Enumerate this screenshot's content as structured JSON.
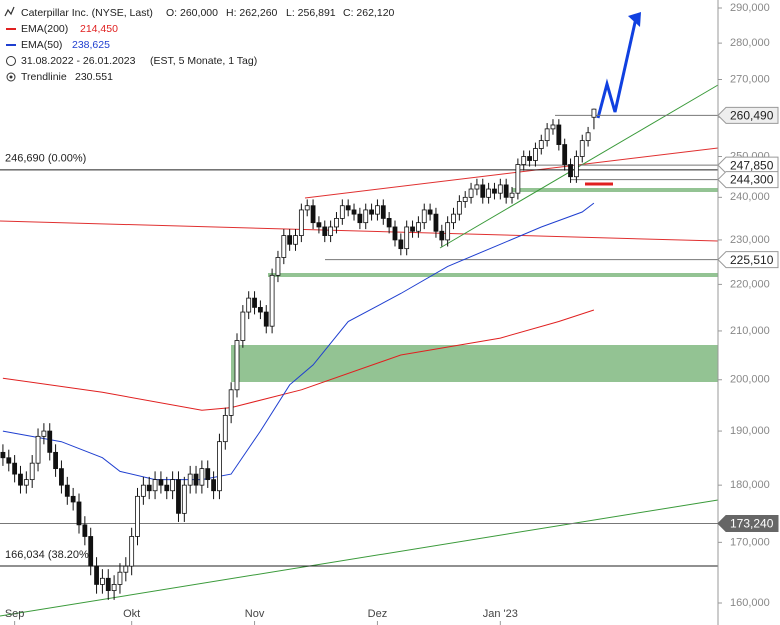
{
  "chart_data": {
    "type": "candlestick",
    "title": "Caterpillar Inc. (NYSE, Last)",
    "ohlc_header": [
      "O: 260,000",
      "H: 262,260",
      "L: 256,891",
      "C: 262,120"
    ],
    "period": "31.08.2022 - 26.01.2023",
    "period_note": "(EST, 5 Monate, 1 Tag)",
    "trendline_name": "Trendlinie",
    "trendline_value": "230.551",
    "log_scale": true,
    "ylim": [
      156520,
      292330
    ],
    "xlim": [
      -0.5,
      122.2
    ],
    "yticks": [
      {
        "value": 160000,
        "label": "160,000"
      },
      {
        "value": 170000,
        "label": "170,000"
      },
      {
        "value": 180000,
        "label": "180,000"
      },
      {
        "value": 190000,
        "label": "190,000"
      },
      {
        "value": 200000,
        "label": "200,000"
      },
      {
        "value": 210000,
        "label": "210,000"
      },
      {
        "value": 220000,
        "label": "220,000"
      },
      {
        "value": 230000,
        "label": "230,000"
      },
      {
        "value": 240000,
        "label": "240,000"
      },
      {
        "value": 250000,
        "label": "250,000"
      },
      {
        "value": 260000,
        "label": "260,000"
      },
      {
        "value": 270000,
        "label": "270,000"
      },
      {
        "value": 280000,
        "label": "280,000"
      },
      {
        "value": 290000,
        "label": "290,000"
      }
    ],
    "xticks": [
      {
        "value": 2,
        "label": "Sep"
      },
      {
        "value": 22,
        "label": "Okt"
      },
      {
        "value": 43,
        "label": "Nov"
      },
      {
        "value": 64,
        "label": "Dez"
      },
      {
        "value": 85,
        "label": "Jan '23"
      }
    ],
    "candle_color_up": "#ffffff",
    "candle_color_down": "#111111",
    "open": [
      186000,
      185000,
      184000,
      182000,
      180000,
      181000,
      184000,
      189000,
      190000,
      186000,
      183000,
      180000,
      178000,
      177000,
      173000,
      171000,
      166000,
      163000,
      164000,
      162000,
      163000,
      165000,
      166000,
      171000,
      178000,
      180000,
      179000,
      181000,
      180000,
      179000,
      181000,
      175000,
      180000,
      182000,
      180000,
      183000,
      181000,
      179000,
      188000,
      193000,
      198000,
      208000,
      214000,
      217000,
      215000,
      214000,
      211000,
      222000,
      226000,
      231000,
      229000,
      231000,
      237000,
      238000,
      234000,
      233000,
      231000,
      233000,
      235000,
      238000,
      237000,
      236000,
      234000,
      237000,
      236000,
      238000,
      235000,
      233000,
      230000,
      228000,
      233000,
      232000,
      234000,
      237000,
      236000,
      232000,
      230000,
      234000,
      236000,
      239000,
      240000,
      242000,
      243000,
      240000,
      242000,
      241000,
      243000,
      240000,
      241000,
      248000,
      250000,
      249000,
      252000,
      254000,
      257000,
      258000,
      253000,
      248000,
      245000,
      250000,
      254000,
      260000
    ],
    "high": [
      187500,
      186500,
      185500,
      183500,
      182500,
      185500,
      190500,
      191500,
      191500,
      187500,
      184500,
      181500,
      179500,
      178500,
      174500,
      172500,
      167500,
      165500,
      165500,
      164500,
      166500,
      167500,
      172500,
      179500,
      181500,
      181500,
      182500,
      182500,
      181500,
      182500,
      182500,
      181500,
      183500,
      183500,
      184500,
      184500,
      182500,
      189500,
      194500,
      199500,
      209500,
      215500,
      218500,
      218500,
      216500,
      215500,
      223500,
      227500,
      232500,
      232500,
      232500,
      238500,
      239500,
      239500,
      235500,
      234500,
      234500,
      236500,
      239500,
      239500,
      238500,
      237500,
      238500,
      238500,
      239500,
      239500,
      236500,
      234500,
      231500,
      234500,
      234500,
      235500,
      238500,
      238500,
      237500,
      233500,
      235500,
      237500,
      240500,
      241500,
      243500,
      244500,
      244500,
      243500,
      243500,
      244500,
      244500,
      242500,
      249500,
      251500,
      251500,
      253500,
      255500,
      258500,
      259500,
      259500,
      254500,
      249500,
      251500,
      255500,
      257500,
      262260
    ],
    "low": [
      183500,
      182500,
      180500,
      178500,
      178500,
      179500,
      182500,
      187500,
      184500,
      181500,
      178500,
      176500,
      175500,
      171500,
      169500,
      164500,
      161500,
      161500,
      160500,
      160500,
      161500,
      163500,
      164500,
      169500,
      176500,
      177500,
      177500,
      178500,
      177500,
      177500,
      173500,
      173500,
      178500,
      178500,
      178500,
      179500,
      177500,
      177500,
      186500,
      191500,
      196500,
      206500,
      212500,
      213500,
      212500,
      209500,
      209500,
      220500,
      224500,
      227500,
      227500,
      229500,
      235500,
      232500,
      231500,
      229500,
      229500,
      231500,
      233500,
      235500,
      234500,
      232500,
      232500,
      234500,
      234500,
      233500,
      231500,
      228500,
      226500,
      226500,
      230500,
      230500,
      232500,
      234500,
      230500,
      228500,
      228500,
      232500,
      234500,
      237500,
      238500,
      240500,
      238500,
      238500,
      239500,
      239500,
      238500,
      238500,
      239500,
      246500,
      247500,
      247500,
      250500,
      252500,
      255500,
      251500,
      246500,
      243500,
      243500,
      248500,
      252500,
      256891
    ],
    "close": [
      185000,
      184000,
      182000,
      180000,
      181000,
      184000,
      189000,
      190000,
      186000,
      183000,
      180000,
      178000,
      177000,
      173000,
      171000,
      166000,
      163000,
      164000,
      162000,
      163000,
      165000,
      166000,
      171000,
      178000,
      180000,
      179000,
      181000,
      180000,
      179000,
      181000,
      175000,
      180000,
      182000,
      180000,
      183000,
      181000,
      179000,
      188000,
      193000,
      198000,
      208000,
      214000,
      217000,
      215000,
      214000,
      211000,
      222000,
      226000,
      231000,
      229000,
      231000,
      237000,
      238000,
      234000,
      233000,
      231000,
      233000,
      235000,
      238000,
      237000,
      236000,
      234000,
      237000,
      236000,
      238000,
      235000,
      233000,
      230000,
      228000,
      233000,
      232000,
      234000,
      237000,
      236000,
      232000,
      230000,
      234000,
      236000,
      239000,
      240000,
      242000,
      243000,
      240000,
      242000,
      241000,
      243000,
      240000,
      241000,
      248000,
      250000,
      249000,
      252000,
      254000,
      257000,
      258000,
      253000,
      248000,
      245000,
      250000,
      254000,
      256000,
      262120
    ],
    "series": [
      {
        "name": "EMA(200)",
        "color": "#e02020",
        "last_label": "214,450",
        "x": [
          0,
          17,
          34,
          39,
          51,
          68,
          85,
          95,
          101
        ],
        "values": [
          200300,
          197500,
          194000,
          194500,
          198000,
          205000,
          208500,
          212000,
          214450
        ]
      },
      {
        "name": "EMA(50)",
        "color": "#1f3fd0",
        "last_label": "238,625",
        "x": [
          0,
          10,
          17,
          20,
          26,
          34,
          39,
          44,
          49,
          53,
          59,
          68,
          76,
          85,
          92,
          99,
          101
        ],
        "values": [
          190000,
          188000,
          185000,
          182500,
          181000,
          181000,
          182000,
          190000,
          199000,
          203000,
          212000,
          218000,
          224000,
          229000,
          233000,
          236500,
          238625
        ]
      }
    ],
    "fib_levels": [
      {
        "value": 246690,
        "label": "246,690 (0.00%)"
      },
      {
        "value": 166034,
        "label": "166,034 (38.20%)"
      }
    ],
    "levels": [
      {
        "value": 260490,
        "label": "260,490"
      },
      {
        "value": 247850,
        "label": "247,850"
      },
      {
        "value": 244300,
        "label": "244,300"
      },
      {
        "value": 225510,
        "label": "225,510"
      },
      {
        "value": 173240,
        "label": "173,240"
      }
    ]
  }
}
